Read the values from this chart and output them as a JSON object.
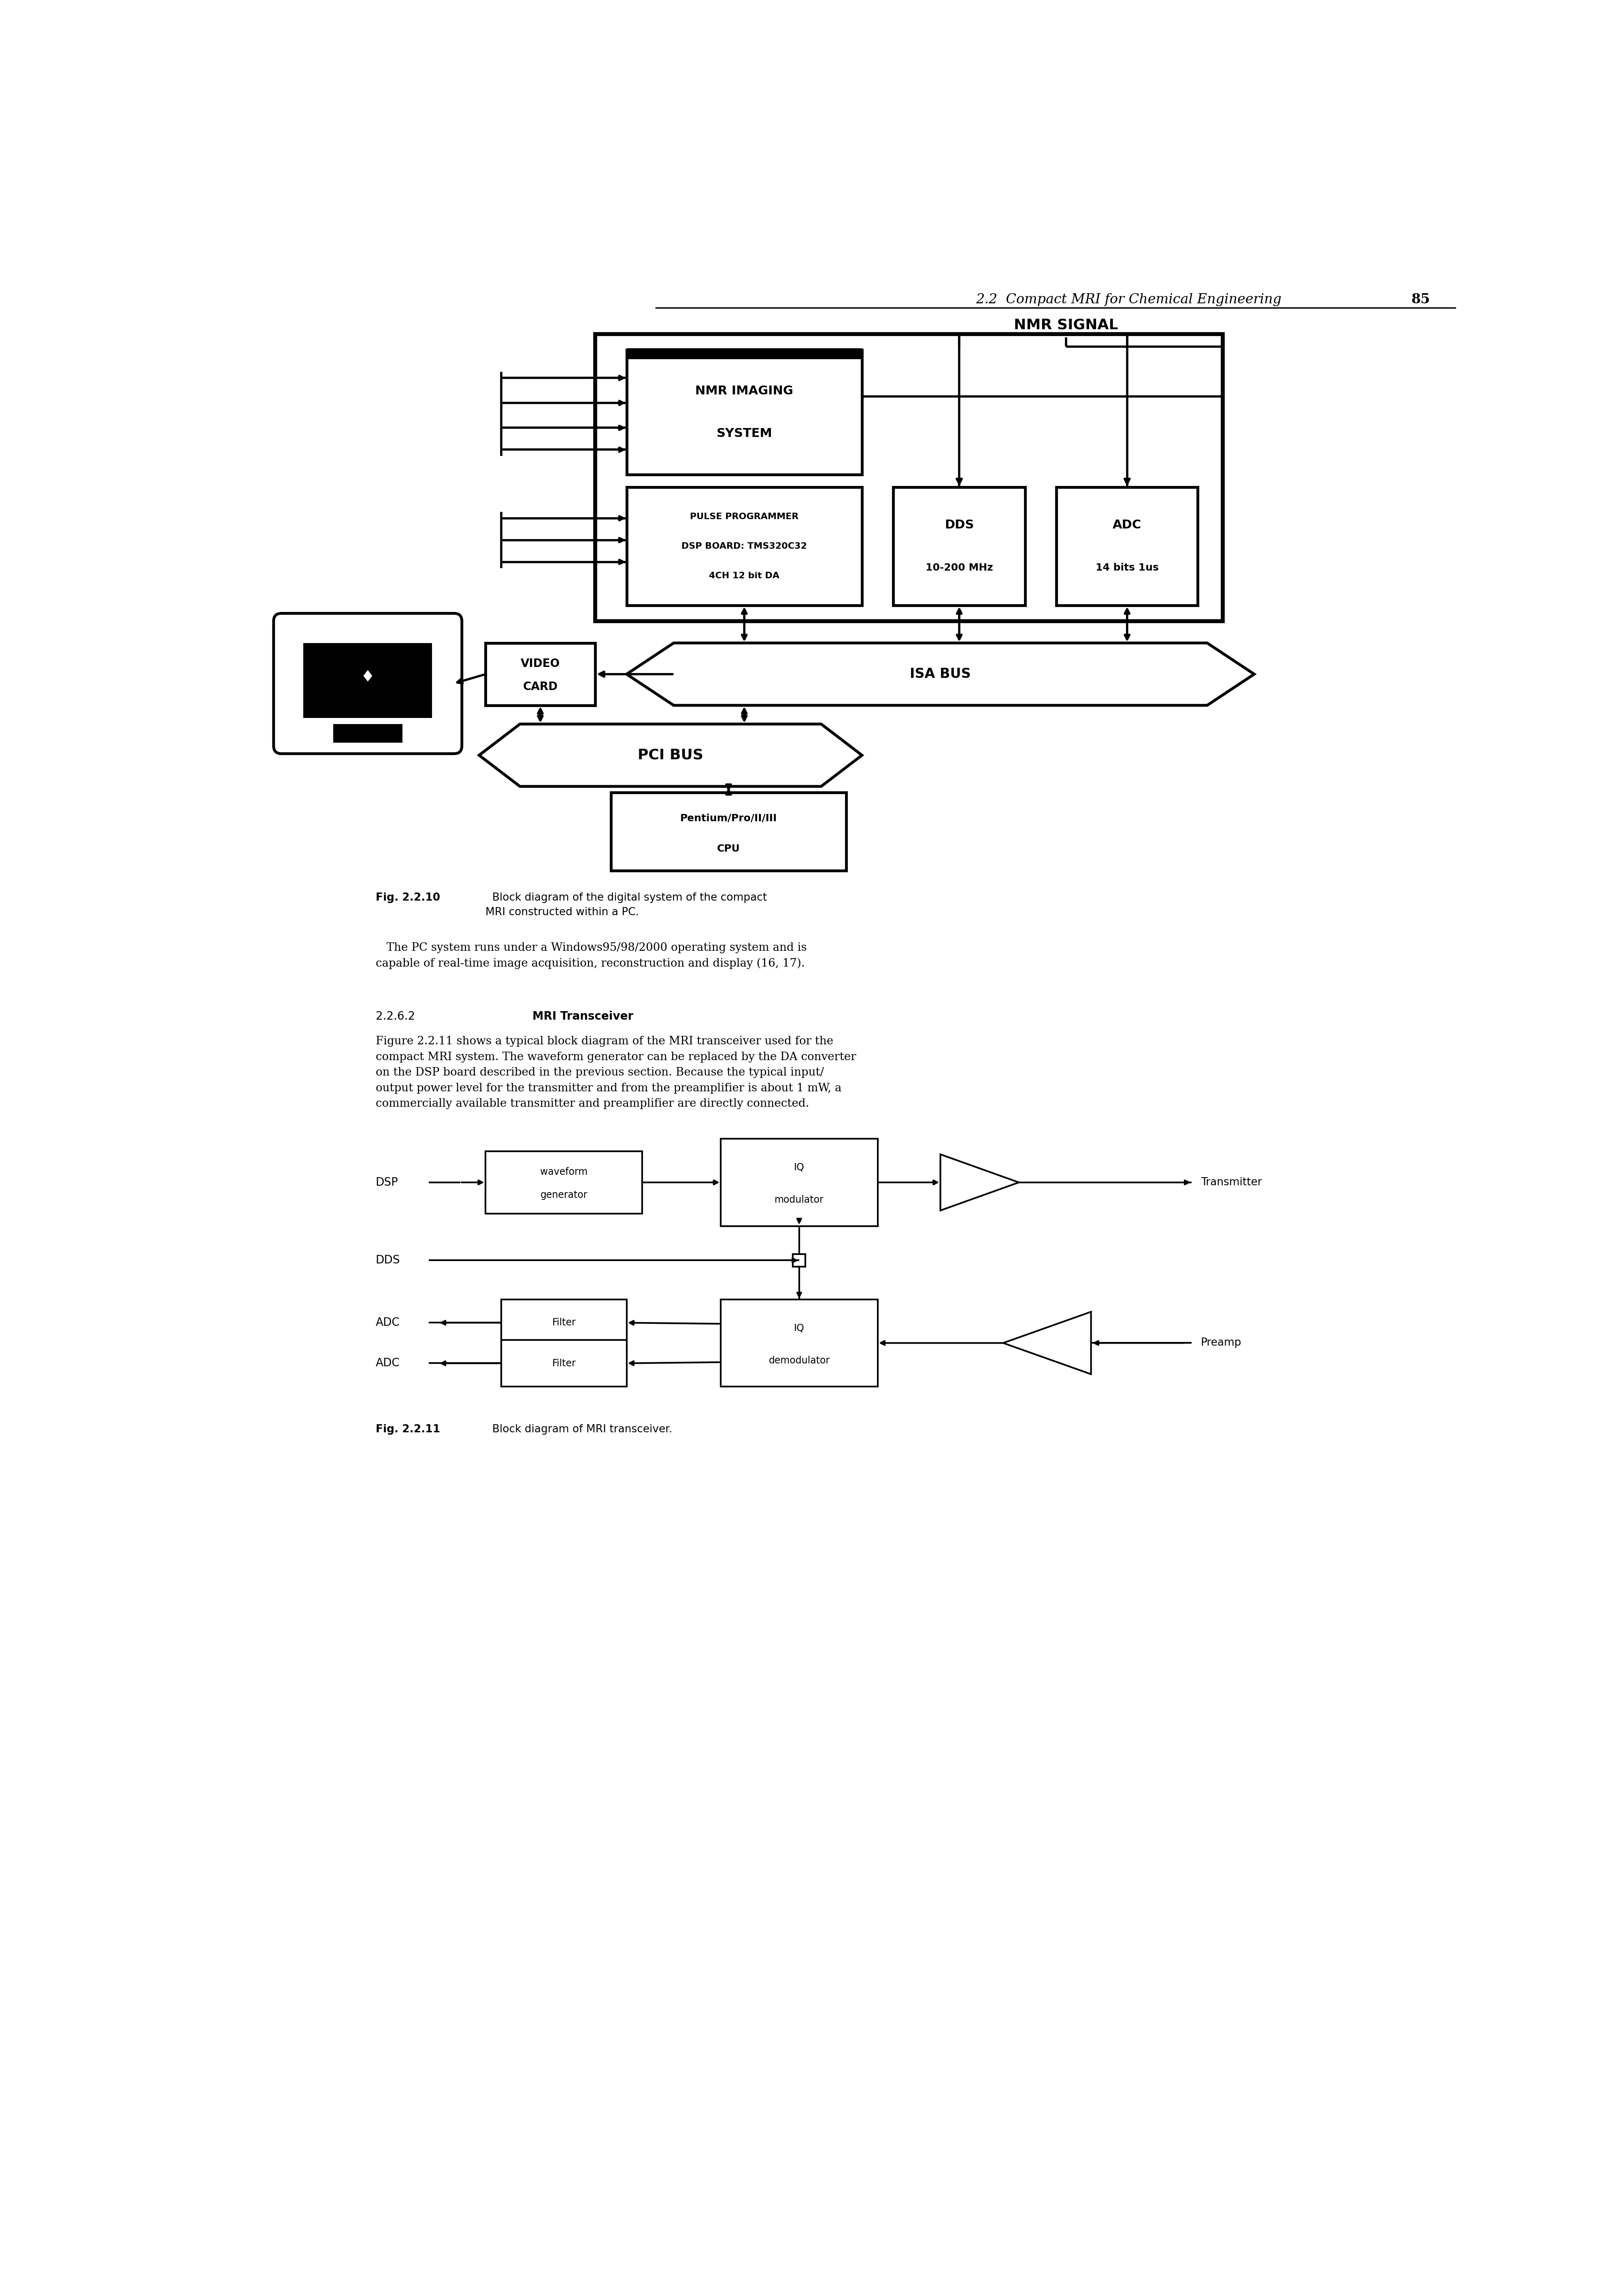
{
  "page_header_italic": "2.2  Compact MRI for Chemical Engineering",
  "page_number": "85",
  "nmr_signal": "NMR SIGNAL",
  "nmr_imaging_line1": "NMR IMAGING",
  "nmr_imaging_line2": "SYSTEM",
  "pulse_prog_line1": "PULSE PROGRAMMER",
  "pulse_prog_line2": "DSP BOARD: TMS320C32",
  "pulse_prog_line3": "4CH 12 bit DA",
  "dds_line1": "DDS",
  "dds_line2": "10-200 MHz",
  "adc_line1": "ADC",
  "adc_line2": "14 bits 1us",
  "video_card_line1": "VIDEO",
  "video_card_line2": "CARD",
  "isa_bus": "ISA BUS",
  "pci_bus": "PCI BUS",
  "cpu_line1": "Pentium/Pro/II/III",
  "cpu_line2": "CPU",
  "fig1_bold": "Fig. 2.2.10",
  "fig1_rest": "  Block diagram of the digital system of the compact\nMRI constructed within a PC.",
  "body_text1": "   The PC system runs under a Windows95/98/2000 operating system and is\ncapable of real-time image acquisition, reconstruction and display (16, 17).",
  "section_num": "2.2.6.2",
  "section_title": "MRI Transceiver",
  "body_text2": "Figure 2.2.11 shows a typical block diagram of the MRI transceiver used for the\ncompact MRI system. The waveform generator can be replaced by the DA converter\non the DSP board described in the previous section. Because the typical input/\noutput power level for the transmitter and from the preamplifier is about 1 mW, a\ncommercially available transmitter and preamplifier are directly connected.",
  "dsp_label": "DSP",
  "dds_label": "DDS",
  "adc_label1": "ADC",
  "adc_label2": "ADC",
  "waveform_gen_line1": "waveform",
  "waveform_gen_line2": "generator",
  "iq_mod_line1": "IQ",
  "iq_mod_line2": "modulator",
  "transmitter_label": "Transmitter",
  "filter_label": "Filter",
  "iq_dem_line1": "IQ",
  "iq_dem_line2": "demodulator",
  "preamp_label": "Preamp",
  "fig2_bold": "Fig. 2.2.11",
  "fig2_rest": "  Block diagram of MRI transceiver.",
  "bg_color": "#ffffff",
  "text_color": "#000000",
  "line_color": "#000000"
}
